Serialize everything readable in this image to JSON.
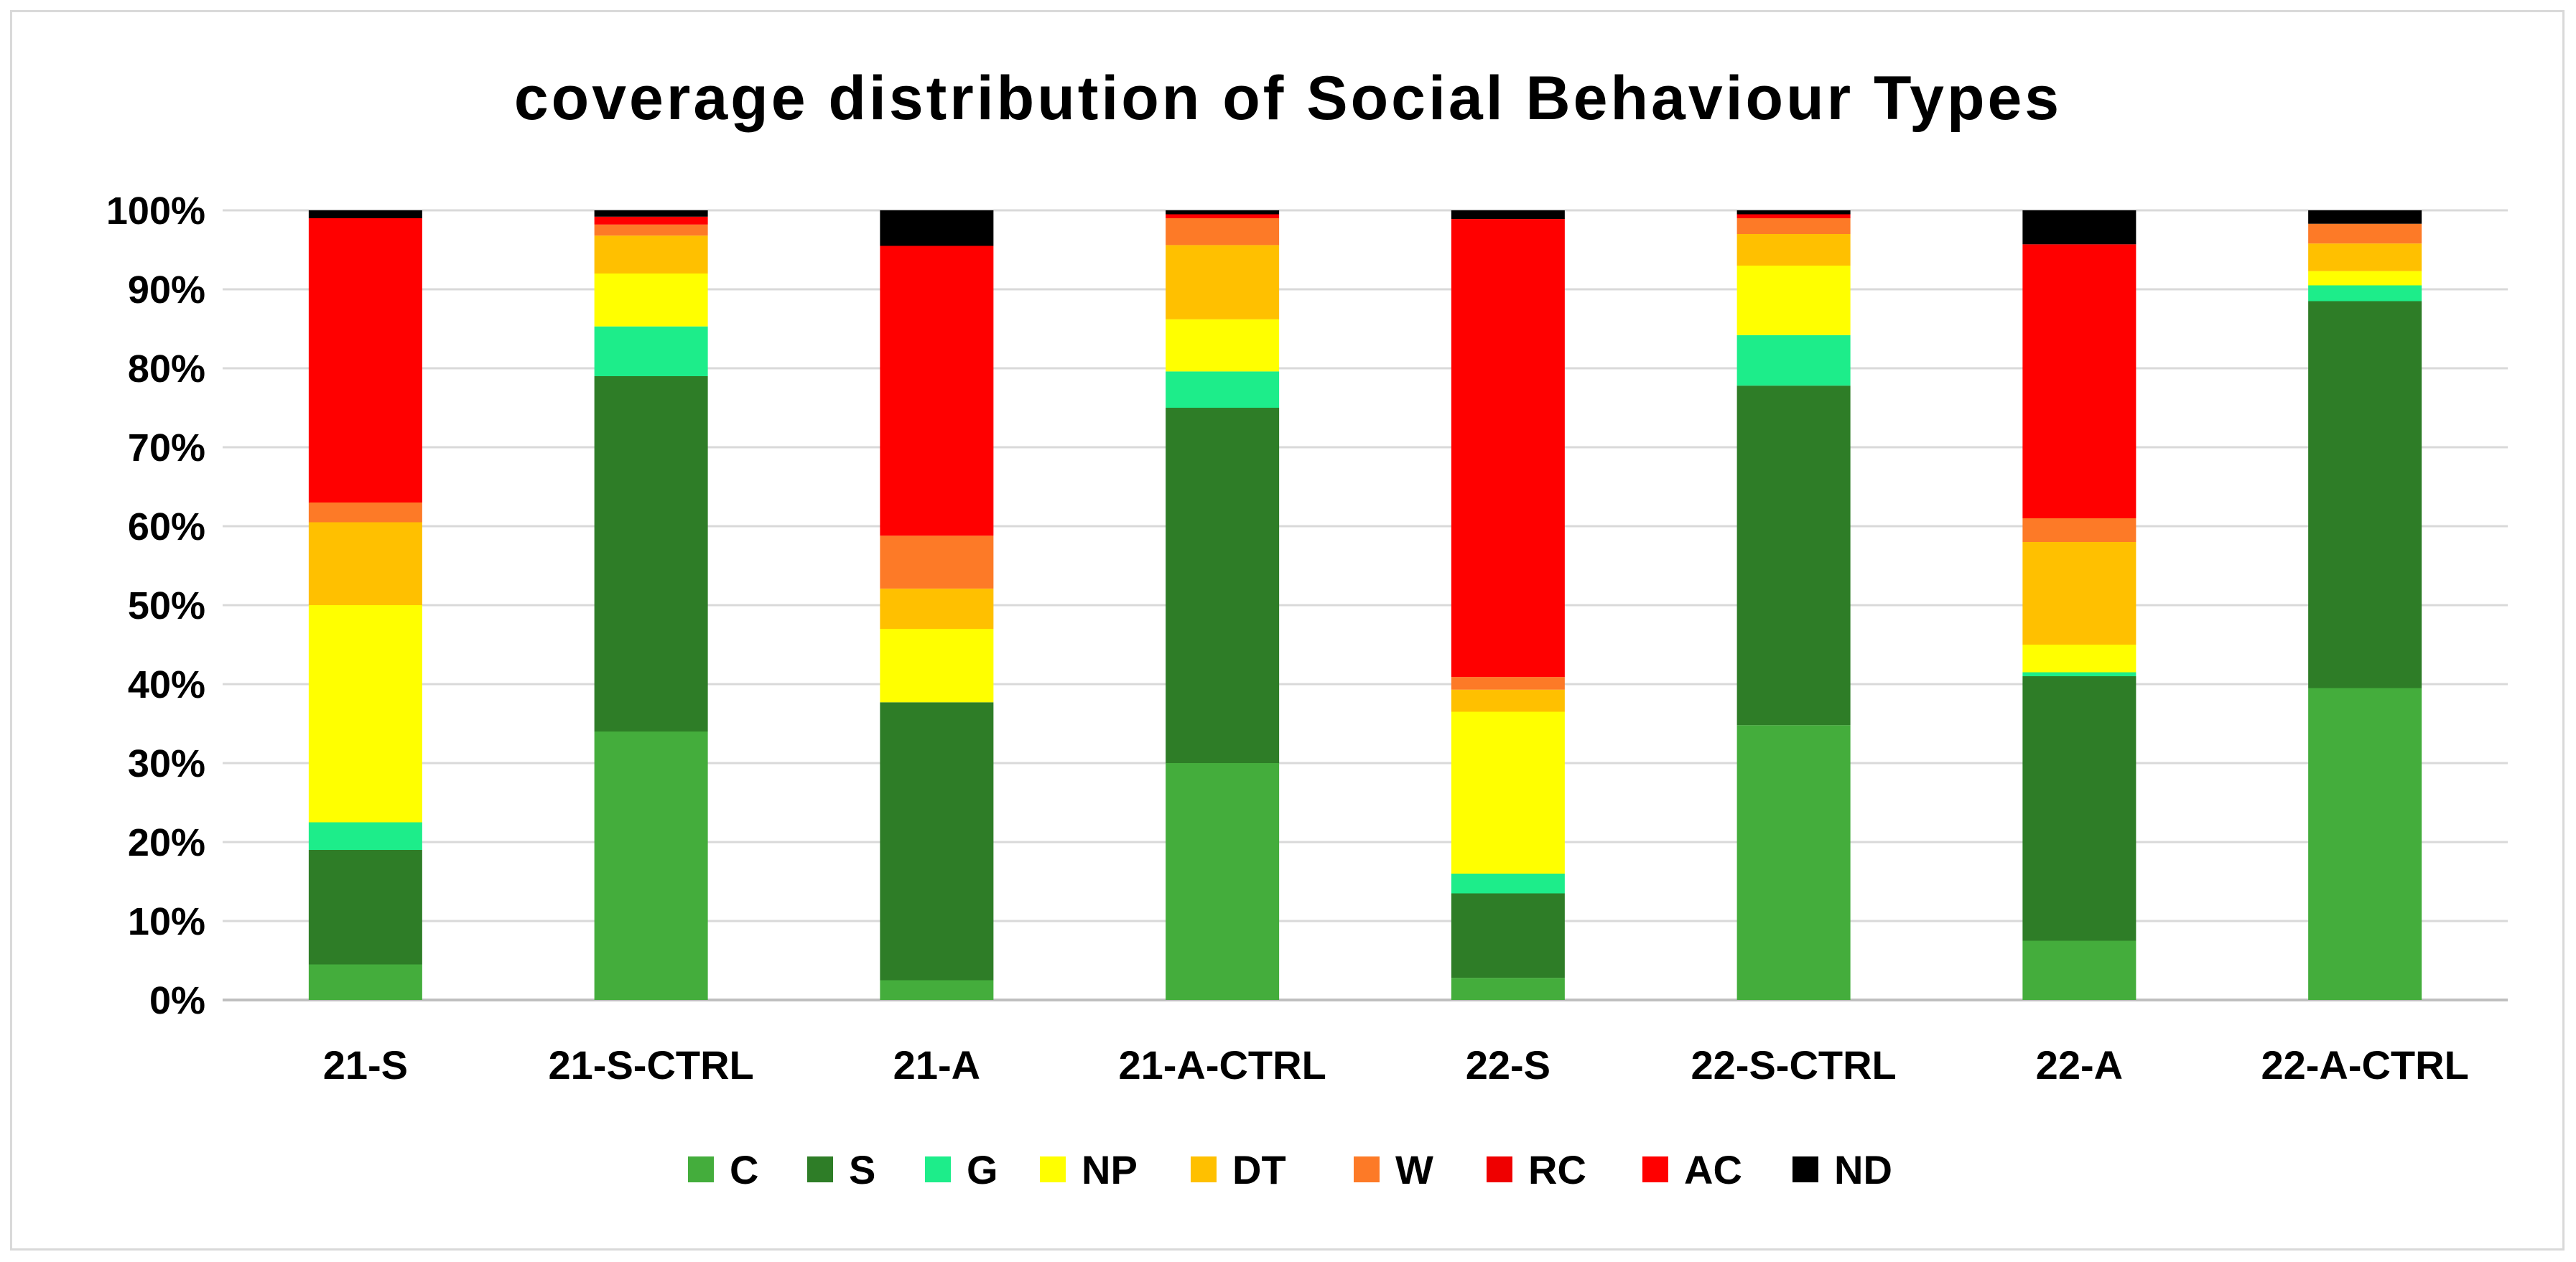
{
  "chart_data": {
    "type": "bar",
    "stacked": true,
    "percent": true,
    "title": "coverage distribution of Social Behaviour Types",
    "xlabel": "",
    "ylabel": "",
    "ylim": [
      0,
      100
    ],
    "y_ticks": [
      "0%",
      "10%",
      "20%",
      "30%",
      "40%",
      "50%",
      "60%",
      "70%",
      "80%",
      "90%",
      "100%"
    ],
    "grid": true,
    "legend_position": "bottom",
    "categories": [
      "21-S",
      "21-S-CTRL",
      "21-A",
      "21-A-CTRL",
      "22-S",
      "22-S-CTRL",
      "22-A",
      "22-A-CTRL"
    ],
    "series": [
      {
        "name": "C",
        "color": "#44ad3c",
        "values": [
          4.5,
          34.0,
          2.5,
          30.0,
          2.8,
          34.8,
          7.5,
          39.5
        ]
      },
      {
        "name": "S",
        "color": "#2e7d27",
        "values": [
          14.5,
          45.0,
          35.2,
          45.0,
          10.7,
          43.0,
          33.5,
          49.0
        ]
      },
      {
        "name": "G",
        "color": "#1ded8a",
        "values": [
          3.5,
          6.3,
          0.0,
          4.6,
          2.5,
          6.4,
          0.5,
          2.0
        ]
      },
      {
        "name": "NP",
        "color": "#ffff00",
        "values": [
          27.5,
          6.7,
          9.3,
          6.6,
          20.5,
          8.8,
          3.5,
          1.8
        ]
      },
      {
        "name": "DT",
        "color": "#ffc000",
        "values": [
          10.5,
          4.8,
          5.1,
          9.4,
          2.8,
          4.0,
          13.0,
          3.5
        ]
      },
      {
        "name": "W",
        "color": "#fd7a27",
        "values": [
          2.5,
          1.4,
          6.7,
          3.4,
          1.6,
          2.0,
          3.0,
          2.5
        ]
      },
      {
        "name": "RC",
        "color": "#ef0000",
        "values": [
          0.0,
          0.0,
          0.0,
          0.0,
          0.0,
          0.0,
          0.0,
          0.0
        ]
      },
      {
        "name": "AC",
        "color": "#ff0000",
        "values": [
          36.0,
          1.0,
          36.7,
          0.5,
          58.0,
          0.5,
          34.7,
          0.0
        ]
      },
      {
        "name": "ND",
        "color": "#000000",
        "values": [
          1.0,
          0.8,
          4.5,
          0.5,
          1.1,
          0.5,
          4.3,
          1.7
        ]
      }
    ]
  }
}
